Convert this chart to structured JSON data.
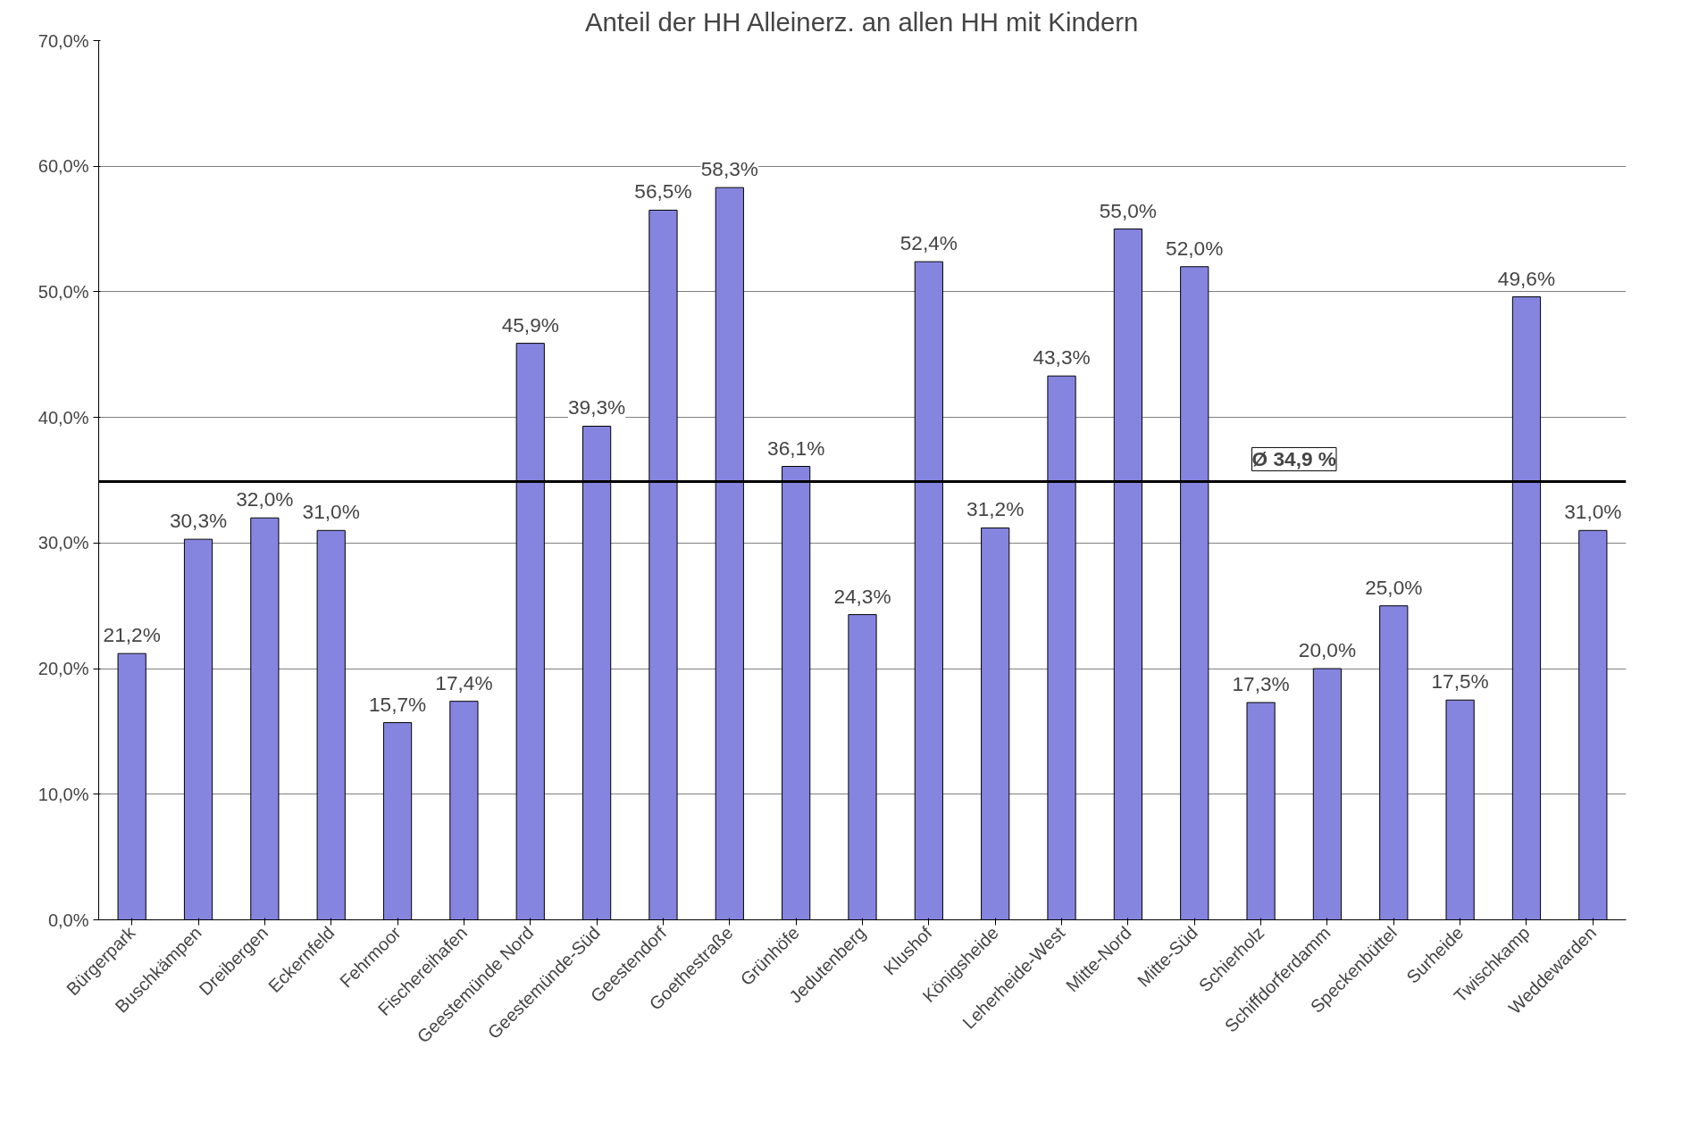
{
  "chart_data": {
    "type": "bar",
    "title": "Anteil der HH Alleinerz. an allen HH mit Kindern",
    "categories": [
      "Bürgerpark",
      "Buschkämpen",
      "Dreibergen",
      "Eckernfeld",
      "Fehrmoor",
      "Fischereihafen",
      "Geestemünde Nord",
      "Geestemünde-Süd",
      "Geestendorf",
      "Goethestraße",
      "Grünhöfe",
      "Jedutenberg",
      "Klushof",
      "Königsheide",
      "Leherheide-West",
      "Mitte-Nord",
      "Mitte-Süd",
      "Schierholz",
      "Schiffdorferdamm",
      "Speckenbüttel",
      "Surheide",
      "Twischkamp",
      "Weddewarden"
    ],
    "values": [
      21.2,
      30.3,
      32.0,
      31.0,
      15.7,
      17.4,
      45.9,
      39.3,
      56.5,
      58.3,
      36.1,
      24.3,
      52.4,
      31.2,
      43.3,
      55.0,
      52.0,
      17.3,
      20.0,
      25.0,
      17.5,
      49.6,
      31.0
    ],
    "value_labels": [
      "21,2%",
      "30,3%",
      "32,0%",
      "31,0%",
      "15,7%",
      "17,4%",
      "45,9%",
      "39,3%",
      "56,5%",
      "58,3%",
      "36,1%",
      "24,3%",
      "52,4%",
      "31,2%",
      "43,3%",
      "55,0%",
      "52,0%",
      "17,3%",
      "20,0%",
      "25,0%",
      "17,5%",
      "49,6%",
      "31,0%"
    ],
    "color": "#8585e0",
    "ylim": [
      0,
      70
    ],
    "yticks": [
      {
        "value": 0,
        "label": "0,0%"
      },
      {
        "value": 10,
        "label": "10,0%"
      },
      {
        "value": 20,
        "label": "20,0%"
      },
      {
        "value": 30,
        "label": "30,0%"
      },
      {
        "value": 40,
        "label": "40,0%"
      },
      {
        "value": 50,
        "label": "50,0%"
      },
      {
        "value": 60,
        "label": "60,0%"
      },
      {
        "value": 70,
        "label": "70,0%"
      }
    ],
    "grid": "y",
    "ref_lines": [
      {
        "axis": "y",
        "value": 34.9,
        "label": "Ø 34,9 %",
        "color": "#000000",
        "line_style": "solid"
      }
    ]
  }
}
